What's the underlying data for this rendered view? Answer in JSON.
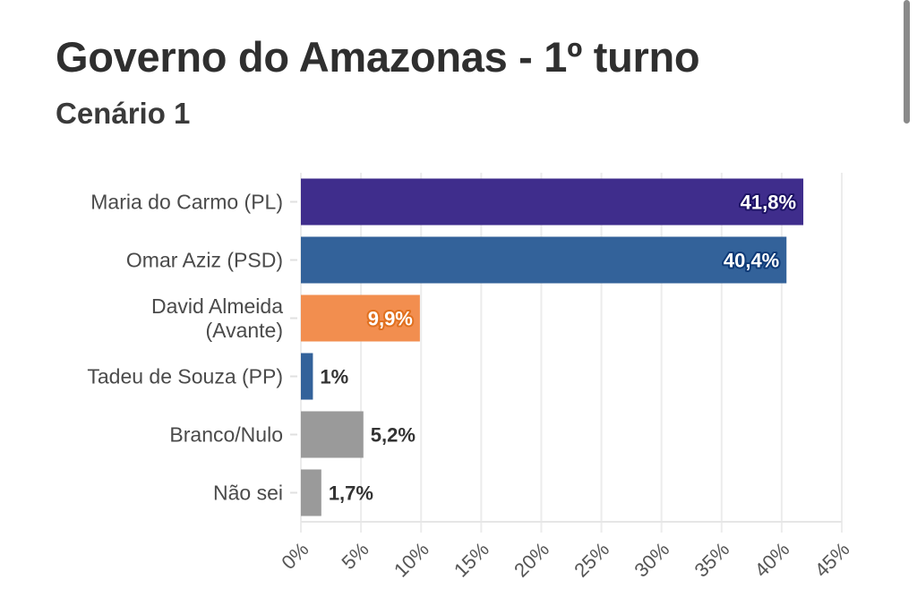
{
  "chart_data": {
    "type": "bar",
    "orientation": "horizontal",
    "title": "Governo do Amazonas - 1º turno",
    "subtitle": "Cenário 1",
    "xlabel": "",
    "ylabel": "",
    "xlim": [
      0,
      45
    ],
    "grid": true,
    "categories": [
      "Maria do Carmo (PL)",
      "Omar Aziz (PSD)",
      "David Almeida (Avante)",
      "Tadeu de Souza (PP)",
      "Branco/Nulo",
      "Não sei"
    ],
    "category_lines": [
      [
        "Maria do Carmo (PL)"
      ],
      [
        "Omar Aziz (PSD)"
      ],
      [
        "David Almeida",
        "(Avante)"
      ],
      [
        "Tadeu de Souza (PP)"
      ],
      [
        "Branco/Nulo"
      ],
      [
        "Não sei"
      ]
    ],
    "values": [
      41.8,
      40.4,
      9.9,
      1.0,
      5.2,
      1.7
    ],
    "value_labels": [
      "41,8%",
      "40,4%",
      "9,9%",
      "1%",
      "5,2%",
      "1,7%"
    ],
    "label_inside": [
      true,
      true,
      true,
      false,
      false,
      false
    ],
    "colors": [
      "#3f2d8c",
      "#33629a",
      "#f28e4f",
      "#33629a",
      "#9a9a9a",
      "#9a9a9a"
    ],
    "label_stroke_colors": [
      "#1e1466",
      "#0f3b78",
      "#e0701f",
      "",
      "",
      ""
    ],
    "ticks": [
      0,
      5,
      10,
      15,
      20,
      25,
      30,
      35,
      40,
      45
    ],
    "tick_labels": [
      "0%",
      "5%",
      "10%",
      "15%",
      "20%",
      "25%",
      "30%",
      "35%",
      "40%",
      "45%"
    ]
  }
}
